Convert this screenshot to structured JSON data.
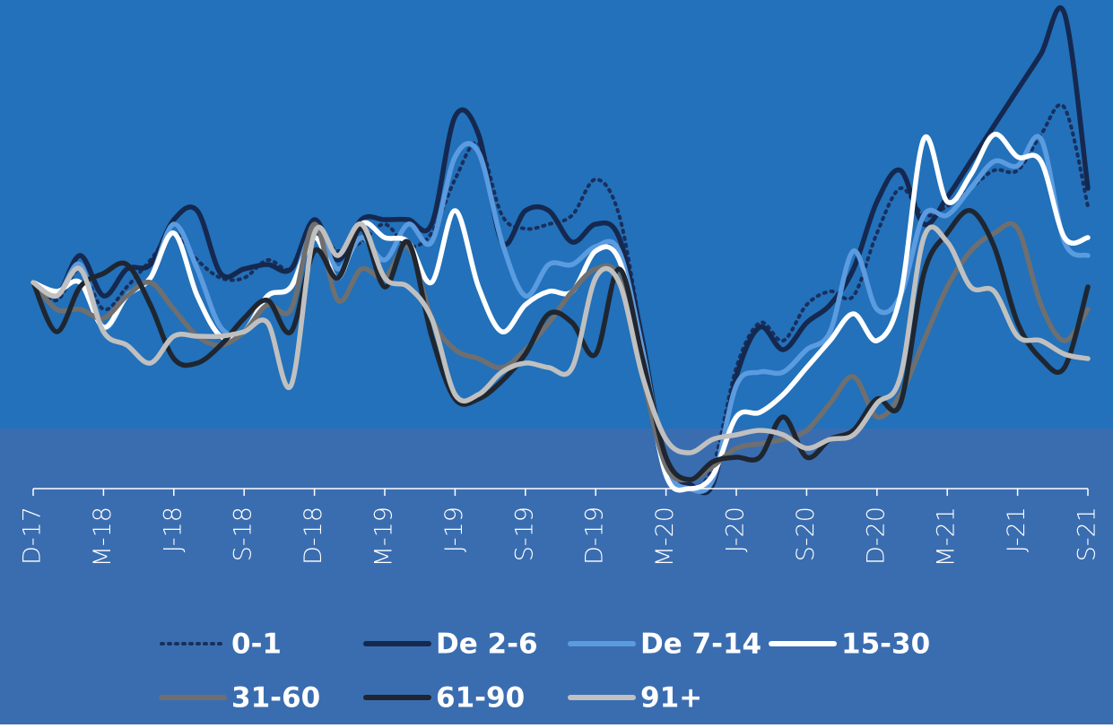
{
  "chart_data": {
    "type": "line",
    "categories": [
      "D-17",
      null,
      null,
      "M-18",
      null,
      null,
      "J-18",
      null,
      null,
      "S-18",
      null,
      null,
      "D-18",
      null,
      null,
      "M-19",
      null,
      null,
      "J-19",
      null,
      null,
      "S-19",
      null,
      null,
      "D-19",
      null,
      null,
      "M-20",
      null,
      null,
      "J-20",
      null,
      null,
      "S-20",
      null,
      null,
      "D-20",
      null,
      null,
      "M-21",
      null,
      null,
      "J-21",
      null,
      null,
      "S-21"
    ],
    "ylim": [
      0,
      540
    ],
    "series": [
      {
        "name": "0-1",
        "color": "#1a2f5c",
        "dash": "dotted",
        "values": [
          230,
          210,
          245,
          200,
          225,
          255,
          285,
          255,
          235,
          235,
          255,
          245,
          285,
          265,
          275,
          295,
          270,
          285,
          345,
          385,
          305,
          290,
          295,
          305,
          345,
          305,
          165,
          25,
          0,
          25,
          135,
          185,
          165,
          205,
          220,
          215,
          285,
          335,
          305,
          315,
          335,
          355,
          355,
          395,
          425,
          315
        ]
      },
      {
        "name": "De 2-6",
        "color": "#15284f",
        "values": [
          230,
          215,
          260,
          215,
          245,
          250,
          300,
          310,
          240,
          245,
          250,
          245,
          300,
          255,
          300,
          300,
          300,
          295,
          415,
          395,
          275,
          310,
          310,
          275,
          295,
          280,
          165,
          25,
          5,
          5,
          125,
          180,
          155,
          185,
          205,
          245,
          320,
          355,
          295,
          325,
          365,
          405,
          445,
          485,
          530,
          335
        ]
      },
      {
        "name": "De 7-14",
        "color": "#5b9be0",
        "values": [
          230,
          215,
          250,
          180,
          215,
          235,
          295,
          245,
          180,
          175,
          215,
          225,
          290,
          245,
          280,
          255,
          295,
          275,
          370,
          375,
          275,
          215,
          250,
          250,
          270,
          265,
          155,
          25,
          0,
          10,
          115,
          130,
          130,
          155,
          175,
          265,
          200,
          215,
          305,
          305,
          335,
          365,
          360,
          390,
          275,
          260
        ]
      },
      {
        "name": "15-30",
        "color": "#ffffff",
        "values": [
          230,
          220,
          230,
          180,
          215,
          235,
          285,
          215,
          170,
          175,
          215,
          225,
          280,
          235,
          295,
          280,
          275,
          230,
          310,
          225,
          175,
          205,
          220,
          220,
          265,
          255,
          145,
          15,
          0,
          15,
          80,
          85,
          105,
          135,
          165,
          195,
          165,
          215,
          390,
          320,
          350,
          395,
          370,
          365,
          280,
          280
        ]
      },
      {
        "name": "31-60",
        "color": "#6f6f6f",
        "values": [
          230,
          200,
          200,
          190,
          215,
          230,
          200,
          170,
          160,
          175,
          205,
          200,
          295,
          210,
          245,
          235,
          270,
          190,
          155,
          145,
          135,
          155,
          185,
          220,
          245,
          235,
          125,
          25,
          10,
          25,
          45,
          50,
          55,
          65,
          95,
          125,
          80,
          105,
          165,
          225,
          265,
          285,
          290,
          205,
          165,
          200
        ]
      },
      {
        "name": "61-90",
        "color": "#1f2630",
        "values": [
          230,
          175,
          225,
          240,
          250,
          205,
          145,
          140,
          160,
          190,
          210,
          175,
          265,
          235,
          290,
          225,
          275,
          170,
          100,
          100,
          120,
          150,
          195,
          185,
          150,
          245,
          145,
          35,
          10,
          30,
          35,
          35,
          80,
          35,
          55,
          65,
          100,
          95,
          240,
          285,
          310,
          270,
          185,
          145,
          135,
          225
        ]
      },
      {
        "name": "91+",
        "color": "#c0c0c0",
        "values": [
          230,
          215,
          245,
          175,
          160,
          140,
          170,
          170,
          170,
          175,
          185,
          115,
          285,
          260,
          295,
          235,
          225,
          190,
          105,
          105,
          130,
          140,
          135,
          135,
          235,
          230,
          125,
          55,
          40,
          55,
          60,
          65,
          60,
          45,
          55,
          60,
          95,
          125,
          280,
          275,
          225,
          220,
          170,
          165,
          150,
          145
        ]
      }
    ]
  }
}
